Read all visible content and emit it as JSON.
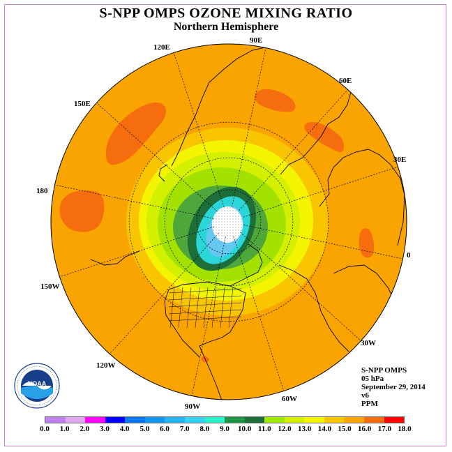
{
  "header": {
    "title": "S-NPP OMPS OZONE MIXING RATIO",
    "subtitle": "Northern Hemisphere"
  },
  "map": {
    "projection": "north-polar-stereographic",
    "longitude_labels": [
      "90E",
      "60E",
      "30E",
      "0",
      "30W",
      "60W",
      "90W",
      "120W",
      "150W",
      "180",
      "150E",
      "120E"
    ],
    "colors": {
      "background_orange": "#f9a400",
      "dark_orange": "#f56d0f",
      "light_orange": "#f9c400",
      "yellow": "#f4f400",
      "yellow_green": "#d2f000",
      "light_green": "#a3e200",
      "mid_green": "#4fa63a",
      "dark_green": "#1e6e3a",
      "cyan": "#2ad6d8",
      "light_blue": "#66c8f0"
    }
  },
  "info": {
    "instrument": "S-NPP OMPS",
    "pressure_level": "05 hPa",
    "date": "September 29, 2014",
    "version": "v6",
    "units": "PPM"
  },
  "colorbar": {
    "ticks": [
      "0.0",
      "1.0",
      "2.0",
      "3.0",
      "4.0",
      "5.0",
      "6.0",
      "7.0",
      "8.0",
      "9.0",
      "10.0",
      "11.0",
      "12.0",
      "13.0",
      "14.0",
      "15.0",
      "16.0",
      "17.0",
      "18.0"
    ],
    "colors": [
      "#c080f0",
      "#e0a8f0",
      "#ff00ff",
      "#0000ff",
      "#0a78f0",
      "#1496f0",
      "#28b4f0",
      "#32d2f0",
      "#28f0c8",
      "#1e9646",
      "#1e6e3a",
      "#a0e600",
      "#d2f000",
      "#f4f400",
      "#f9c400",
      "#f9a400",
      "#f56d0f",
      "#ff0000",
      "#8b5a3c"
    ]
  },
  "logo": {
    "text": "NOAA",
    "ring_text": "NATIONAL OCEANIC AND ATMOSPHERIC ADMINISTRATION · U.S. DEPARTMENT OF COMMERCE"
  }
}
